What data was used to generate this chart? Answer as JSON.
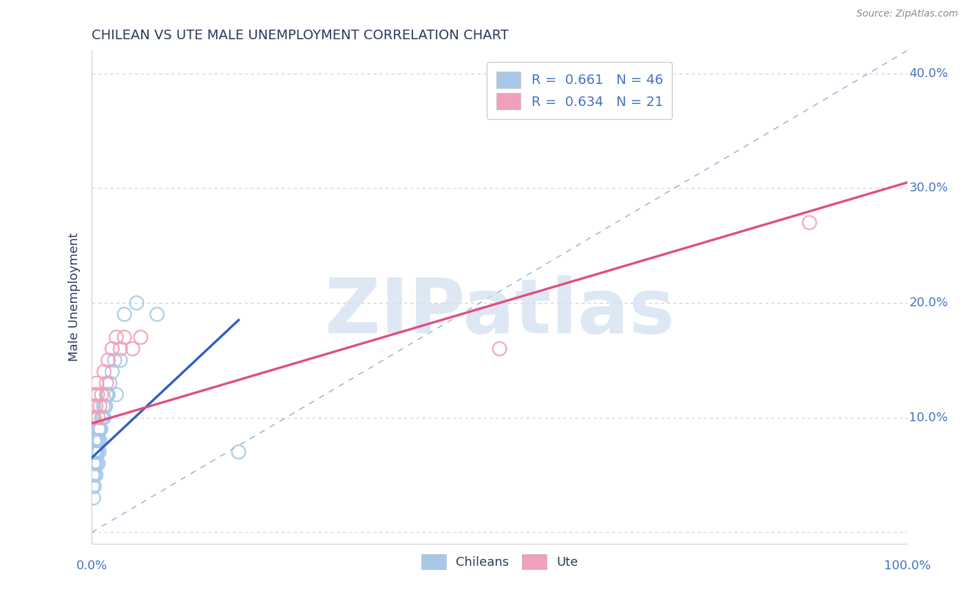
{
  "title": "CHILEAN VS UTE MALE UNEMPLOYMENT CORRELATION CHART",
  "source_text": "Source: ZipAtlas.com",
  "ylabel": "Male Unemployment",
  "x_min": 0.0,
  "x_max": 1.0,
  "y_min": -0.01,
  "y_max": 0.42,
  "yticks": [
    0.0,
    0.1,
    0.2,
    0.3,
    0.4
  ],
  "ytick_labels": [
    "",
    "10.0%",
    "20.0%",
    "30.0%",
    "40.0%"
  ],
  "xticks": [
    0.0,
    0.2,
    0.4,
    0.6,
    0.8,
    1.0
  ],
  "chilean_R": 0.661,
  "chilean_N": 46,
  "ute_R": 0.634,
  "ute_N": 21,
  "chilean_scatter_color": "#A8C8E8",
  "ute_scatter_color": "#F0A0B8",
  "chilean_line_color": "#3060C0",
  "ute_line_color": "#E05080",
  "grid_color": "#CCCCCC",
  "title_color": "#2D3A5C",
  "axis_label_color": "#2D3A5C",
  "tick_color": "#4472C4",
  "ref_line_color": "#A0B8D8",
  "watermark_color": "#C8D8F0",
  "background_color": "#FFFFFF",
  "chilean_x": [
    0.001,
    0.001,
    0.002,
    0.002,
    0.002,
    0.003,
    0.003,
    0.003,
    0.003,
    0.004,
    0.004,
    0.004,
    0.005,
    0.005,
    0.005,
    0.006,
    0.006,
    0.006,
    0.007,
    0.007,
    0.008,
    0.008,
    0.008,
    0.009,
    0.009,
    0.01,
    0.01,
    0.011,
    0.012,
    0.013,
    0.014,
    0.015,
    0.016,
    0.017,
    0.018,
    0.019,
    0.02,
    0.022,
    0.025,
    0.028,
    0.03,
    0.035,
    0.04,
    0.055,
    0.08,
    0.18
  ],
  "chilean_y": [
    0.04,
    0.05,
    0.03,
    0.05,
    0.06,
    0.04,
    0.06,
    0.07,
    0.08,
    0.05,
    0.07,
    0.08,
    0.05,
    0.06,
    0.07,
    0.06,
    0.07,
    0.08,
    0.07,
    0.08,
    0.06,
    0.08,
    0.09,
    0.07,
    0.09,
    0.08,
    0.09,
    0.09,
    0.1,
    0.1,
    0.11,
    0.1,
    0.11,
    0.11,
    0.12,
    0.12,
    0.12,
    0.13,
    0.14,
    0.15,
    0.12,
    0.15,
    0.19,
    0.2,
    0.19,
    0.07
  ],
  "ute_x": [
    0.001,
    0.002,
    0.003,
    0.004,
    0.005,
    0.006,
    0.007,
    0.008,
    0.01,
    0.012,
    0.015,
    0.018,
    0.02,
    0.025,
    0.03,
    0.035,
    0.04,
    0.05,
    0.06,
    0.5,
    0.88
  ],
  "ute_y": [
    0.1,
    0.11,
    0.1,
    0.12,
    0.11,
    0.13,
    0.12,
    0.1,
    0.11,
    0.12,
    0.14,
    0.13,
    0.15,
    0.16,
    0.17,
    0.16,
    0.17,
    0.16,
    0.17,
    0.16,
    0.27
  ],
  "chilean_trend_x": [
    0.0,
    0.18
  ],
  "chilean_trend_y": [
    0.065,
    0.185
  ],
  "ute_trend_x": [
    0.0,
    1.0
  ],
  "ute_trend_y": [
    0.095,
    0.305
  ]
}
